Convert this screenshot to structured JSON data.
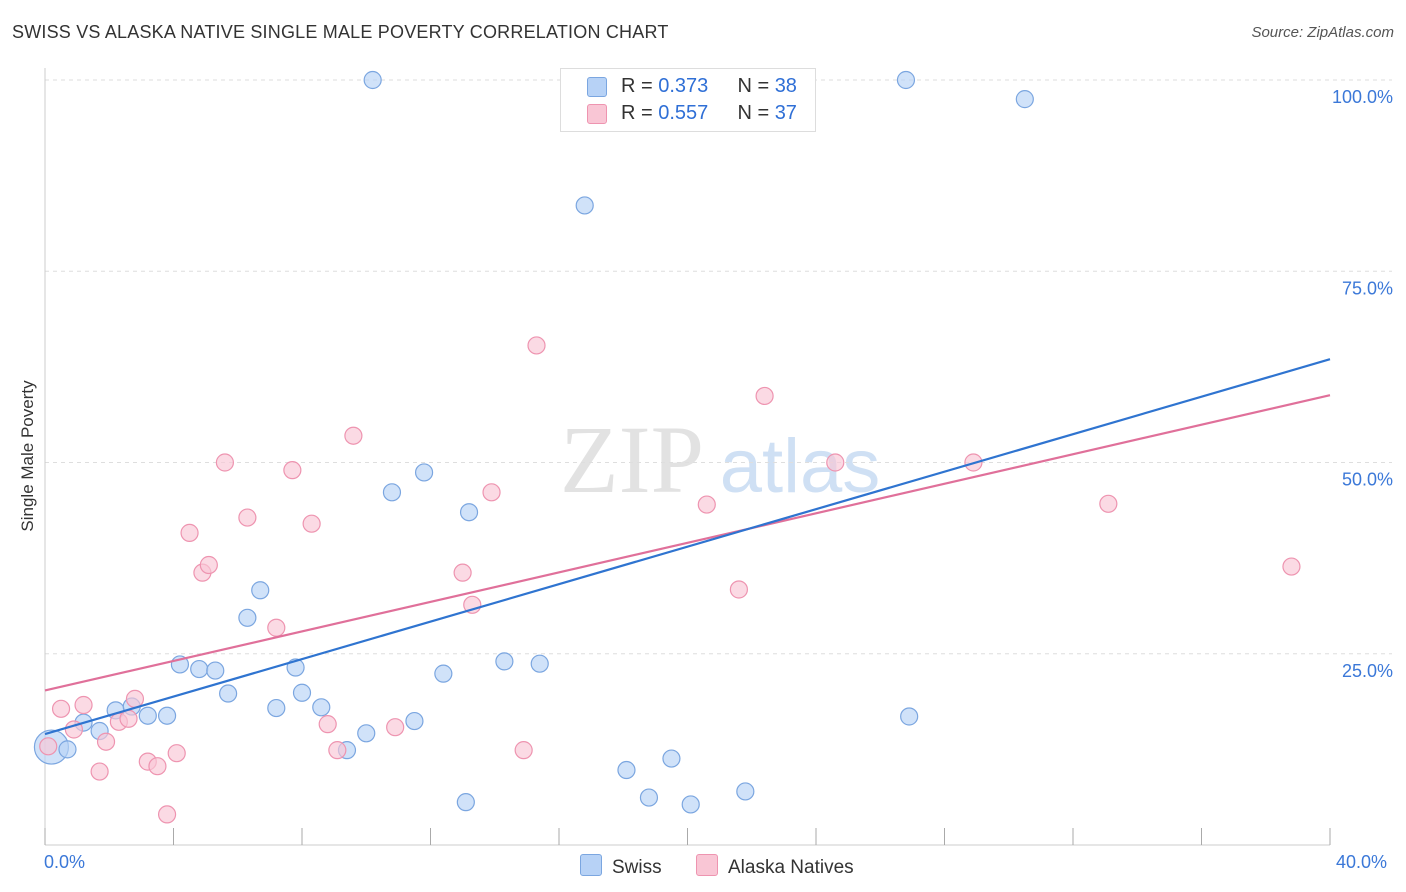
{
  "header": {
    "title": "SWISS VS ALASKA NATIVE SINGLE MALE POVERTY CORRELATION CHART",
    "source": "Source: ZipAtlas.com"
  },
  "watermark": {
    "zip": "ZIP",
    "atlas": "atlas"
  },
  "legend_top": {
    "swiss": {
      "r_label": "R = ",
      "r_value": "0.373",
      "n_label": "N = ",
      "n_value": "38"
    },
    "alaska": {
      "r_label": "R = ",
      "r_value": "0.557",
      "n_label": "N = ",
      "n_value": "37"
    }
  },
  "legend_bottom": {
    "swiss": "Swiss",
    "alaska": "Alaska Natives"
  },
  "x_axis_labels": {
    "min": "0.0%",
    "max": "40.0%"
  },
  "colors": {
    "swiss_fill": "#b7d2f6",
    "swiss_stroke": "#7ba6e0",
    "swiss_line": "#2f74d0",
    "alaska_fill": "#f9c6d5",
    "alaska_stroke": "#ee94b0",
    "alaska_line": "#e0709a",
    "axis_text": "#3b78d8",
    "grid": "#dedede"
  },
  "chart_data": {
    "type": "scatter",
    "title": "SWISS VS ALASKA NATIVE SINGLE MALE POVERTY CORRELATION CHART",
    "xlabel": "",
    "ylabel": "Single Male Poverty",
    "xlim": [
      0,
      40
    ],
    "ylim": [
      0,
      100
    ],
    "x_unit": "%",
    "y_unit": "%",
    "yticks": [
      {
        "value": 25,
        "label": "25.0%"
      },
      {
        "value": 50,
        "label": "50.0%"
      },
      {
        "value": 75,
        "label": "75.0%"
      },
      {
        "value": 100,
        "label": "100.0%"
      }
    ],
    "grid": true,
    "legend_position": "top-center",
    "series": [
      {
        "name": "Swiss",
        "R": 0.373,
        "N": 38,
        "trend": {
          "x": [
            0,
            40
          ],
          "y": [
            14.5,
            63.5
          ]
        },
        "points": [
          {
            "x": 0.2,
            "y": 12.8,
            "big": true
          },
          {
            "x": 0.7,
            "y": 12.5
          },
          {
            "x": 1.2,
            "y": 16.0
          },
          {
            "x": 1.7,
            "y": 14.9
          },
          {
            "x": 2.2,
            "y": 17.6
          },
          {
            "x": 2.7,
            "y": 18.1
          },
          {
            "x": 3.2,
            "y": 16.9
          },
          {
            "x": 3.8,
            "y": 16.9
          },
          {
            "x": 4.2,
            "y": 23.6
          },
          {
            "x": 4.8,
            "y": 23.0
          },
          {
            "x": 5.3,
            "y": 22.8
          },
          {
            "x": 5.7,
            "y": 19.8
          },
          {
            "x": 6.3,
            "y": 29.7
          },
          {
            "x": 6.7,
            "y": 33.3
          },
          {
            "x": 7.2,
            "y": 17.9
          },
          {
            "x": 7.8,
            "y": 23.2
          },
          {
            "x": 8.0,
            "y": 19.9
          },
          {
            "x": 8.6,
            "y": 18.0
          },
          {
            "x": 9.4,
            "y": 12.4
          },
          {
            "x": 10.0,
            "y": 14.6
          },
          {
            "x": 10.2,
            "y": 100.0
          },
          {
            "x": 10.8,
            "y": 46.1
          },
          {
            "x": 11.5,
            "y": 16.2
          },
          {
            "x": 11.8,
            "y": 48.7
          },
          {
            "x": 12.4,
            "y": 22.4
          },
          {
            "x": 13.1,
            "y": 5.6
          },
          {
            "x": 13.2,
            "y": 43.5
          },
          {
            "x": 14.3,
            "y": 24.0
          },
          {
            "x": 15.4,
            "y": 23.7
          },
          {
            "x": 16.8,
            "y": 83.6
          },
          {
            "x": 18.1,
            "y": 9.8
          },
          {
            "x": 18.8,
            "y": 6.2
          },
          {
            "x": 19.5,
            "y": 11.3
          },
          {
            "x": 20.1,
            "y": 5.3
          },
          {
            "x": 21.8,
            "y": 7.0
          },
          {
            "x": 26.9,
            "y": 16.8
          },
          {
            "x": 26.8,
            "y": 100.0
          },
          {
            "x": 30.5,
            "y": 97.5
          }
        ]
      },
      {
        "name": "Alaska Natives",
        "R": 0.557,
        "N": 37,
        "trend": {
          "x": [
            0,
            40
          ],
          "y": [
            20.2,
            58.8
          ]
        },
        "points": [
          {
            "x": 0.1,
            "y": 12.9
          },
          {
            "x": 0.5,
            "y": 17.8
          },
          {
            "x": 0.9,
            "y": 15.1
          },
          {
            "x": 1.2,
            "y": 18.3
          },
          {
            "x": 1.7,
            "y": 9.6
          },
          {
            "x": 1.9,
            "y": 13.5
          },
          {
            "x": 2.3,
            "y": 16.1
          },
          {
            "x": 2.6,
            "y": 16.5
          },
          {
            "x": 2.8,
            "y": 19.1
          },
          {
            "x": 3.2,
            "y": 10.9
          },
          {
            "x": 3.5,
            "y": 10.3
          },
          {
            "x": 3.8,
            "y": 4.0
          },
          {
            "x": 4.1,
            "y": 12.0
          },
          {
            "x": 4.5,
            "y": 40.8
          },
          {
            "x": 4.9,
            "y": 35.6
          },
          {
            "x": 5.1,
            "y": 36.6
          },
          {
            "x": 5.6,
            "y": 50.0
          },
          {
            "x": 6.3,
            "y": 42.8
          },
          {
            "x": 7.2,
            "y": 28.4
          },
          {
            "x": 7.7,
            "y": 49.0
          },
          {
            "x": 8.3,
            "y": 42.0
          },
          {
            "x": 8.8,
            "y": 15.8
          },
          {
            "x": 9.1,
            "y": 12.4
          },
          {
            "x": 9.6,
            "y": 53.5
          },
          {
            "x": 10.9,
            "y": 15.4
          },
          {
            "x": 13.0,
            "y": 35.6
          },
          {
            "x": 13.3,
            "y": 31.4
          },
          {
            "x": 13.9,
            "y": 46.1
          },
          {
            "x": 14.9,
            "y": 12.4
          },
          {
            "x": 15.3,
            "y": 65.3
          },
          {
            "x": 20.6,
            "y": 44.5
          },
          {
            "x": 21.6,
            "y": 33.4
          },
          {
            "x": 22.4,
            "y": 58.7
          },
          {
            "x": 24.6,
            "y": 50.0
          },
          {
            "x": 28.9,
            "y": 50.0
          },
          {
            "x": 33.1,
            "y": 44.6
          },
          {
            "x": 38.8,
            "y": 36.4
          }
        ]
      }
    ]
  }
}
